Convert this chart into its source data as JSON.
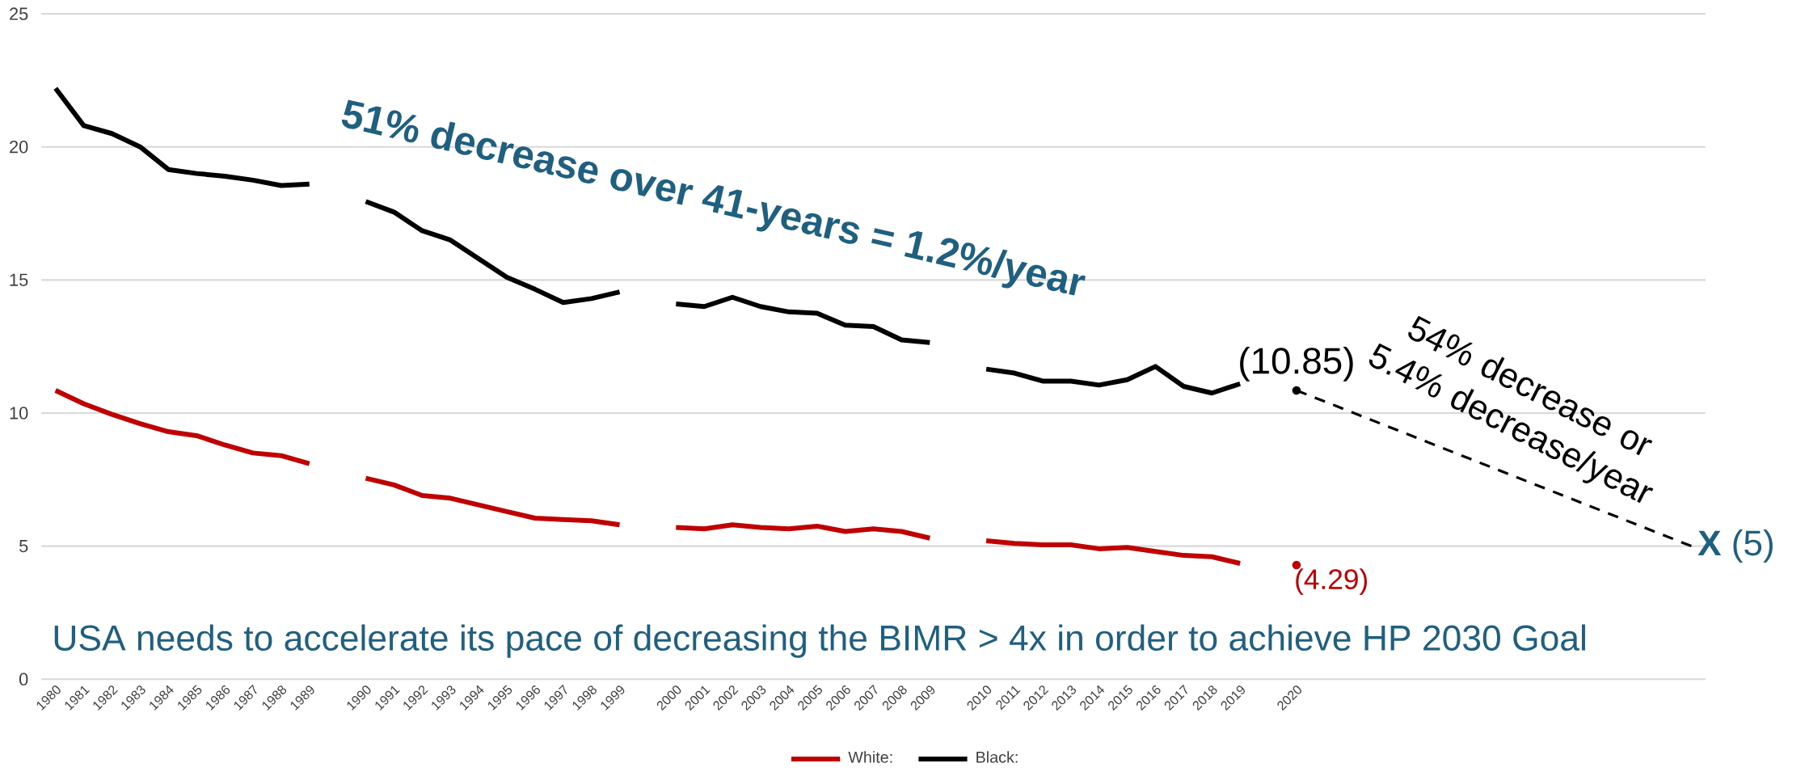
{
  "chart_data": {
    "type": "line",
    "categories": [
      "1980",
      "1981",
      "1982",
      "1983",
      "1984",
      "1985",
      "1986",
      "1987",
      "1988",
      "1989",
      null,
      "1990",
      "1991",
      "1992",
      "1993",
      "1994",
      "1995",
      "1996",
      "1997",
      "1998",
      "1999",
      null,
      "2000",
      "2001",
      "2002",
      "2003",
      "2004",
      "2005",
      "2006",
      "2007",
      "2008",
      "2009",
      null,
      "2010",
      "2011",
      "2012",
      "2013",
      "2014",
      "2015",
      "2016",
      "2017",
      "2018",
      "2019",
      null,
      "2020",
      null,
      null,
      null,
      null,
      null,
      null,
      null,
      null,
      null,
      null,
      null,
      null,
      null,
      null
    ],
    "series": [
      {
        "name": "White:",
        "color": "#c00000",
        "values": [
          10.85,
          10.35,
          9.95,
          9.6,
          9.3,
          9.15,
          8.8,
          8.5,
          8.4,
          8.1,
          null,
          7.55,
          7.3,
          6.9,
          6.8,
          6.55,
          6.3,
          6.05,
          6.0,
          5.95,
          5.8,
          null,
          5.7,
          5.65,
          5.8,
          5.7,
          5.65,
          5.75,
          5.55,
          5.65,
          5.55,
          5.3,
          null,
          5.2,
          5.1,
          5.05,
          5.05,
          4.9,
          4.95,
          4.8,
          4.65,
          4.6,
          4.35,
          null,
          4.29,
          null,
          null,
          null,
          null,
          null,
          null,
          null,
          null,
          null,
          null,
          null,
          null,
          null,
          null
        ],
        "value_labels": [
          null,
          null,
          null,
          null,
          null,
          null,
          null,
          null,
          null,
          null,
          null,
          null,
          null,
          null,
          null,
          null,
          null,
          null,
          null,
          null,
          null,
          null,
          null,
          null,
          null,
          null,
          null,
          null,
          null,
          null,
          null,
          null,
          null,
          null,
          null,
          null,
          null,
          null,
          null,
          null,
          null,
          null,
          null,
          null,
          "(4.29)",
          null,
          null,
          null,
          null,
          null,
          null,
          null,
          null,
          null,
          null,
          null,
          null,
          null,
          null
        ]
      },
      {
        "name": "Black:",
        "color": "#000000",
        "values": [
          22.2,
          20.8,
          20.5,
          20.0,
          19.15,
          19.0,
          18.9,
          18.75,
          18.55,
          18.6,
          null,
          17.95,
          17.55,
          16.85,
          16.5,
          15.8,
          15.1,
          14.65,
          14.15,
          14.3,
          14.55,
          null,
          14.1,
          14.0,
          14.35,
          14.0,
          13.8,
          13.75,
          13.3,
          13.25,
          12.75,
          12.65,
          null,
          11.65,
          11.5,
          11.2,
          11.2,
          11.05,
          11.25,
          11.75,
          11.0,
          10.75,
          11.1,
          null,
          10.85,
          null,
          null,
          null,
          null,
          null,
          null,
          null,
          null,
          null,
          null,
          null,
          null,
          null,
          null
        ],
        "value_labels": [
          null,
          null,
          null,
          null,
          null,
          null,
          null,
          null,
          null,
          null,
          null,
          null,
          null,
          null,
          null,
          null,
          null,
          null,
          null,
          null,
          null,
          null,
          null,
          null,
          null,
          null,
          null,
          null,
          null,
          null,
          null,
          null,
          null,
          null,
          null,
          null,
          null,
          null,
          null,
          null,
          null,
          null,
          null,
          null,
          "(10.85)",
          null,
          null,
          null,
          null,
          null,
          null,
          null,
          null,
          null,
          null,
          null,
          null,
          null,
          null
        ]
      },
      {
        "color": "#000000",
        "line_style": "dashed",
        "values": [
          null,
          null,
          null,
          null,
          null,
          null,
          null,
          null,
          null,
          null,
          null,
          null,
          null,
          null,
          null,
          null,
          null,
          null,
          null,
          null,
          null,
          null,
          null,
          null,
          null,
          null,
          null,
          null,
          null,
          null,
          null,
          null,
          null,
          null,
          null,
          null,
          null,
          null,
          null,
          null,
          null,
          null,
          null,
          null,
          10.85,
          null,
          null,
          null,
          null,
          null,
          null,
          null,
          null,
          null,
          null,
          null,
          null,
          null,
          5
        ],
        "value_labels": [
          null,
          null,
          null,
          null,
          null,
          null,
          null,
          null,
          null,
          null,
          null,
          null,
          null,
          null,
          null,
          null,
          null,
          null,
          null,
          null,
          null,
          null,
          null,
          null,
          null,
          null,
          null,
          null,
          null,
          null,
          null,
          null,
          null,
          null,
          null,
          null,
          null,
          null,
          null,
          null,
          null,
          null,
          null,
          null,
          null,
          null,
          null,
          null,
          null,
          null,
          null,
          null,
          null,
          null,
          null,
          null,
          null,
          null,
          "**X** (5)"
        ]
      }
    ],
    "ylim": [
      0,
      25
    ],
    "yticks": [
      0,
      5,
      10,
      15,
      20,
      25
    ],
    "grid": "y",
    "legend": "bottom",
    "annotations": [
      "51% decrease over 41-years = 1.2%/year",
      "54% decrease or 5.4% decrease/year",
      "USA needs to accelerate its pace of decreasing the BIMR > 4x in order to achieve HP 2030 Goal"
    ]
  }
}
